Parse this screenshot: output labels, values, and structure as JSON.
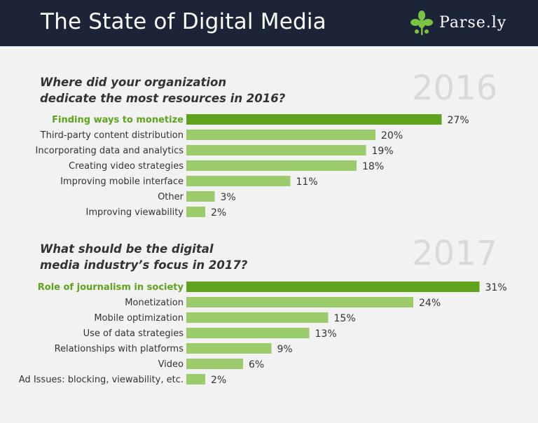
{
  "header": {
    "title": "The State of Digital Media",
    "brand": "Parse.ly"
  },
  "colors": {
    "header_bg": "#1c2538",
    "bar": "#9ccb6b",
    "bar_highlight": "#5ea31b",
    "year_text": "#d9d9d9"
  },
  "chart_data": [
    {
      "type": "bar",
      "orientation": "horizontal",
      "year": "2016",
      "title": "Where did your organization dedicate the most resources in 2016?",
      "title_lines": [
        "Where did your organization",
        "dedicate the most resources in 2016?"
      ],
      "categories": [
        "Finding ways to monetize",
        "Third-party content distribution",
        "Incorporating data and analytics",
        "Creating video strategies",
        "Improving mobile interface",
        "Other",
        "Improving viewability"
      ],
      "values": [
        27,
        20,
        19,
        18,
        11,
        3,
        2
      ],
      "value_labels": [
        "27%",
        "20%",
        "19%",
        "18%",
        "11%",
        "3%",
        "2%"
      ],
      "highlight_index": 0,
      "unit": "%"
    },
    {
      "type": "bar",
      "orientation": "horizontal",
      "year": "2017",
      "title": "What should be the digital media industry’s focus in 2017?",
      "title_lines": [
        "What should be the digital",
        "media industry’s focus in 2017?"
      ],
      "categories": [
        "Role of journalism in society",
        "Monetization",
        "Mobile optimization",
        "Use of data strategies",
        "Relationships with platforms",
        "Video",
        "Ad Issues: blocking, viewability, etc."
      ],
      "values": [
        31,
        24,
        15,
        13,
        9,
        6,
        2
      ],
      "value_labels": [
        "31%",
        "24%",
        "15%",
        "13%",
        "9%",
        "6%",
        "2%"
      ],
      "highlight_index": 0,
      "unit": "%"
    }
  ]
}
